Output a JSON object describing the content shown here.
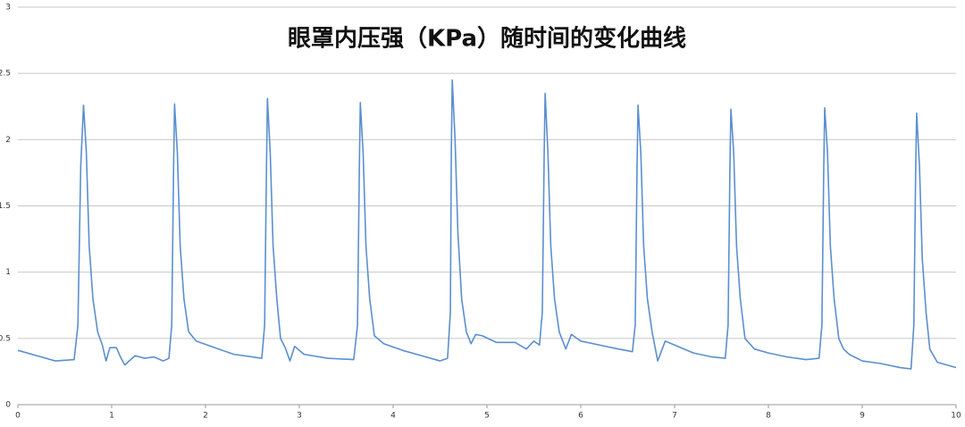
{
  "chart_data": {
    "type": "line",
    "title": "眼罩内压强（KPa）随时间的变化曲线",
    "x": [
      0,
      0.2,
      0.4,
      0.6,
      0.64,
      0.67,
      0.7,
      0.73,
      0.76,
      0.8,
      0.85,
      0.9,
      0.94,
      0.98,
      1.05,
      1.1,
      1.14,
      1.25,
      1.35,
      1.45,
      1.55,
      1.61,
      1.64,
      1.66,
      1.67,
      1.7,
      1.73,
      1.77,
      1.82,
      1.9,
      2.1,
      2.3,
      2.5,
      2.6,
      2.63,
      2.65,
      2.66,
      2.69,
      2.72,
      2.76,
      2.8,
      2.85,
      2.9,
      2.95,
      3.05,
      3.3,
      3.58,
      3.62,
      3.64,
      3.65,
      3.68,
      3.71,
      3.75,
      3.8,
      3.9,
      4.1,
      4.3,
      4.5,
      4.58,
      4.61,
      4.62,
      4.63,
      4.66,
      4.69,
      4.73,
      4.78,
      4.83,
      4.88,
      4.95,
      5.1,
      5.3,
      5.42,
      5.5,
      5.56,
      5.59,
      5.61,
      5.62,
      5.65,
      5.68,
      5.72,
      5.77,
      5.84,
      5.9,
      6.0,
      6.2,
      6.4,
      6.55,
      6.58,
      6.6,
      6.61,
      6.64,
      6.67,
      6.71,
      6.76,
      6.82,
      6.9,
      7.0,
      7.2,
      7.4,
      7.54,
      7.57,
      7.59,
      7.6,
      7.63,
      7.66,
      7.7,
      7.75,
      7.85,
      8.0,
      8.2,
      8.4,
      8.54,
      8.57,
      8.59,
      8.6,
      8.63,
      8.66,
      8.7,
      8.75,
      8.8,
      8.86,
      9.0,
      9.2,
      9.4,
      9.52,
      9.55,
      9.57,
      9.58,
      9.61,
      9.64,
      9.68,
      9.72,
      9.8,
      9.9,
      10
    ],
    "series": [
      {
        "color": "#5b8fd0",
        "values": [
          0.41,
          0.37,
          0.33,
          0.34,
          0.6,
          1.8,
          2.26,
          1.9,
          1.2,
          0.8,
          0.55,
          0.45,
          0.33,
          0.43,
          0.43,
          0.35,
          0.3,
          0.37,
          0.35,
          0.36,
          0.33,
          0.35,
          0.6,
          1.8,
          2.27,
          1.9,
          1.2,
          0.8,
          0.55,
          0.48,
          0.43,
          0.38,
          0.36,
          0.35,
          0.6,
          1.8,
          2.31,
          1.9,
          1.2,
          0.8,
          0.5,
          0.43,
          0.33,
          0.44,
          0.38,
          0.35,
          0.34,
          0.6,
          1.8,
          2.28,
          1.9,
          1.2,
          0.8,
          0.52,
          0.46,
          0.41,
          0.37,
          0.33,
          0.35,
          0.7,
          1.9,
          2.45,
          2.0,
          1.3,
          0.8,
          0.55,
          0.46,
          0.53,
          0.52,
          0.47,
          0.47,
          0.42,
          0.48,
          0.45,
          0.7,
          1.9,
          2.35,
          1.9,
          1.2,
          0.8,
          0.55,
          0.42,
          0.53,
          0.48,
          0.45,
          0.42,
          0.4,
          0.6,
          1.8,
          2.26,
          1.9,
          1.2,
          0.8,
          0.55,
          0.33,
          0.48,
          0.45,
          0.39,
          0.36,
          0.35,
          0.6,
          1.8,
          2.23,
          1.9,
          1.2,
          0.8,
          0.5,
          0.42,
          0.39,
          0.36,
          0.34,
          0.35,
          0.6,
          1.8,
          2.24,
          1.9,
          1.2,
          0.8,
          0.5,
          0.42,
          0.38,
          0.33,
          0.31,
          0.28,
          0.27,
          0.6,
          1.8,
          2.2,
          1.8,
          1.1,
          0.7,
          0.42,
          0.32,
          0.3,
          0.28
        ]
      }
    ],
    "xlim": [
      0,
      10
    ],
    "xticks": [
      0,
      1,
      2,
      3,
      4,
      5,
      6,
      7,
      8,
      9,
      10
    ],
    "ylim": [
      0,
      3
    ],
    "yticks": [
      0,
      0.5,
      1,
      1.5,
      2,
      2.5,
      3
    ],
    "grid": true
  }
}
